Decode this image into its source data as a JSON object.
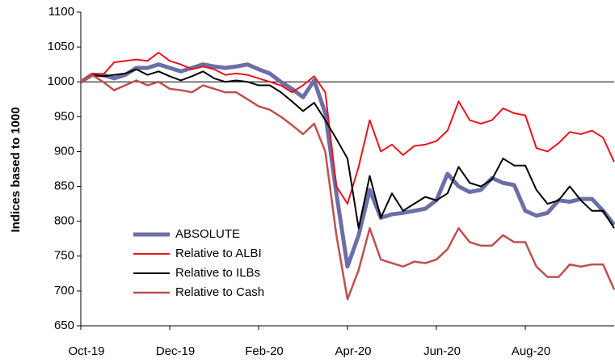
{
  "chart_data": {
    "type": "line",
    "y_label": "Indices based to 1000",
    "categories": [
      "Oct-19",
      null,
      null,
      null,
      null,
      null,
      null,
      null,
      "Dec-19",
      null,
      null,
      null,
      null,
      null,
      null,
      null,
      "Feb-20",
      null,
      null,
      null,
      null,
      null,
      null,
      null,
      "Apr-20",
      null,
      null,
      null,
      null,
      null,
      null,
      null,
      "Jun-20",
      null,
      null,
      null,
      null,
      null,
      null,
      null,
      "Aug-20",
      null,
      null,
      null,
      null,
      null,
      null,
      null,
      null
    ],
    "ylim": [
      650,
      1100
    ],
    "yticks": [
      650,
      700,
      750,
      800,
      850,
      900,
      950,
      1000,
      1050,
      1100
    ],
    "baseline": 1000,
    "legend": "lower left",
    "series": [
      {
        "name": "ABSOLUTE",
        "color": "#6b6fa6",
        "width": 5,
        "values": [
          1000,
          1010,
          1010,
          1005,
          1010,
          1020,
          1020,
          1025,
          1020,
          1015,
          1020,
          1025,
          1022,
          1020,
          1022,
          1025,
          1018,
          1012,
          1000,
          990,
          978,
          1002,
          955,
          840,
          735,
          780,
          845,
          805,
          810,
          812,
          815,
          818,
          830,
          868,
          850,
          842,
          845,
          862,
          855,
          852,
          815,
          808,
          812,
          830,
          828,
          832,
          832,
          815,
          795
        ]
      },
      {
        "name": "Relative to ALBI",
        "color": "#e8141c",
        "width": 2,
        "values": [
          1000,
          1012,
          1010,
          1028,
          1030,
          1032,
          1030,
          1042,
          1030,
          1025,
          1018,
          1022,
          1018,
          1010,
          1012,
          1010,
          1005,
          1000,
          995,
          985,
          995,
          1008,
          985,
          850,
          825,
          878,
          945,
          900,
          910,
          895,
          908,
          910,
          915,
          930,
          972,
          945,
          940,
          945,
          962,
          955,
          952,
          905,
          900,
          912,
          928,
          925,
          930,
          920,
          885
        ]
      },
      {
        "name": "Relative to ILBs",
        "color": "#000000",
        "width": 2,
        "values": [
          1000,
          1010,
          1008,
          1010,
          1012,
          1018,
          1010,
          1015,
          1008,
          1002,
          1008,
          1015,
          1005,
          1000,
          1002,
          1000,
          995,
          995,
          985,
          972,
          958,
          970,
          945,
          918,
          890,
          790,
          865,
          805,
          840,
          815,
          825,
          835,
          830,
          840,
          878,
          855,
          850,
          860,
          890,
          880,
          880,
          845,
          825,
          830,
          850,
          830,
          815,
          815,
          790
        ]
      },
      {
        "name": "Relative to Cash",
        "color": "#c0504d",
        "width": 2.5,
        "values": [
          1000,
          1010,
          1000,
          988,
          995,
          1002,
          995,
          1000,
          990,
          988,
          985,
          995,
          990,
          985,
          985,
          975,
          965,
          960,
          950,
          938,
          925,
          940,
          900,
          780,
          688,
          730,
          790,
          745,
          740,
          735,
          742,
          740,
          745,
          760,
          790,
          770,
          765,
          765,
          780,
          770,
          770,
          735,
          720,
          720,
          738,
          735,
          738,
          738,
          702
        ]
      }
    ]
  }
}
